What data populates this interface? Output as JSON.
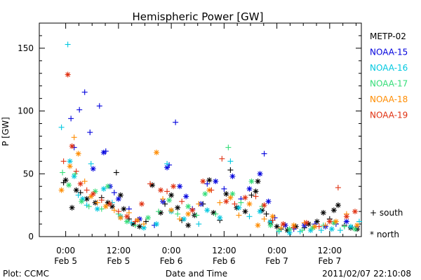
{
  "chart_data": {
    "type": "scatter",
    "title": "Hemispheric Power [GW]",
    "xlabel": "Date and Time",
    "ylabel": "P [GW]",
    "ylim": [
      0,
      170
    ],
    "xlim": [
      -0.25,
      2.8
    ],
    "x_unit": "days since Feb 5 00:00",
    "y_ticks": [
      0,
      50,
      100,
      150
    ],
    "x_ticks": [
      {
        "x": 0.0,
        "time": "0:00",
        "date": "Feb 5"
      },
      {
        "x": 0.5,
        "time": "12:00",
        "date": "Feb 5"
      },
      {
        "x": 1.0,
        "time": "0:00",
        "date": "Feb 6"
      },
      {
        "x": 1.5,
        "time": "12:00",
        "date": "Feb 6"
      },
      {
        "x": 2.0,
        "time": "0:00",
        "date": "Feb 7"
      },
      {
        "x": 2.5,
        "time": "12:00",
        "date": "Feb 7"
      }
    ],
    "grid": false,
    "legend_position": "right",
    "hemisphere_legend": [
      {
        "symbol": "+",
        "label": "south"
      },
      {
        "symbol": "*",
        "label": "north"
      }
    ],
    "series": [
      {
        "name": "METP-02",
        "color": "#000000",
        "points": [
          [
            -0.02,
            43,
            "+"
          ],
          [
            0.0,
            45,
            "*"
          ],
          [
            0.06,
            23,
            "*"
          ],
          [
            0.1,
            37,
            "*"
          ],
          [
            0.14,
            35,
            "+"
          ],
          [
            0.2,
            30,
            "*"
          ],
          [
            0.28,
            27,
            "*"
          ],
          [
            0.34,
            31,
            "+"
          ],
          [
            0.4,
            27,
            "*"
          ],
          [
            0.44,
            24,
            "*"
          ],
          [
            0.48,
            51,
            "+"
          ],
          [
            0.52,
            33,
            "*"
          ],
          [
            0.55,
            22,
            "*"
          ],
          [
            0.6,
            14,
            "+"
          ],
          [
            0.64,
            10,
            "*"
          ],
          [
            0.7,
            8,
            "*"
          ],
          [
            0.76,
            12,
            "+"
          ],
          [
            0.82,
            41,
            "*"
          ],
          [
            0.9,
            19,
            "*"
          ],
          [
            0.94,
            26,
            "+"
          ],
          [
            1.0,
            33,
            "*"
          ],
          [
            1.06,
            23,
            "*"
          ],
          [
            1.1,
            13,
            "+"
          ],
          [
            1.16,
            9,
            "*"
          ],
          [
            1.22,
            17,
            "*"
          ],
          [
            1.3,
            26,
            "+"
          ],
          [
            1.36,
            45,
            "*"
          ],
          [
            1.4,
            19,
            "*"
          ],
          [
            1.46,
            13,
            "+"
          ],
          [
            1.52,
            34,
            "*"
          ],
          [
            1.56,
            53,
            "+"
          ],
          [
            1.62,
            23,
            "*"
          ],
          [
            1.7,
            20,
            "*"
          ],
          [
            1.76,
            33,
            "+"
          ],
          [
            1.8,
            36,
            "*"
          ],
          [
            1.82,
            44,
            "*"
          ],
          [
            1.86,
            21,
            "*"
          ],
          [
            1.9,
            18,
            "+"
          ],
          [
            1.94,
            11,
            "*"
          ],
          [
            2.0,
            8,
            "*"
          ],
          [
            2.04,
            6,
            "+"
          ],
          [
            2.1,
            5,
            "*"
          ],
          [
            2.18,
            8,
            "*"
          ],
          [
            2.26,
            7,
            "+"
          ],
          [
            2.3,
            10,
            "*"
          ],
          [
            2.38,
            12,
            "*"
          ],
          [
            2.44,
            19,
            "*"
          ],
          [
            2.5,
            14,
            "+"
          ],
          [
            2.54,
            21,
            "*"
          ],
          [
            2.58,
            25,
            "*"
          ],
          [
            2.64,
            9,
            "+"
          ],
          [
            2.7,
            7,
            "*"
          ],
          [
            2.76,
            6,
            "*"
          ]
        ]
      },
      {
        "name": "NOAA-15",
        "color": "#0000dd",
        "points": [
          [
            0.05,
            94,
            "+"
          ],
          [
            0.08,
            71,
            "+"
          ],
          [
            0.13,
            101,
            "+"
          ],
          [
            0.18,
            115,
            "+"
          ],
          [
            0.23,
            83,
            "+"
          ],
          [
            0.26,
            54,
            "*"
          ],
          [
            0.32,
            104,
            "+"
          ],
          [
            0.36,
            67,
            "*"
          ],
          [
            0.38,
            68,
            "+"
          ],
          [
            0.42,
            40,
            "*"
          ],
          [
            0.46,
            35,
            "+"
          ],
          [
            0.5,
            30,
            "*"
          ],
          [
            0.6,
            22,
            "+"
          ],
          [
            0.7,
            14,
            "*"
          ],
          [
            0.84,
            9,
            "+"
          ],
          [
            0.92,
            28,
            "*"
          ],
          [
            0.96,
            55,
            "*"
          ],
          [
            0.98,
            57,
            "+"
          ],
          [
            1.04,
            91,
            "+"
          ],
          [
            1.08,
            40,
            "*"
          ],
          [
            1.14,
            32,
            "*"
          ],
          [
            1.2,
            22,
            "+"
          ],
          [
            1.28,
            26,
            "*"
          ],
          [
            1.34,
            42,
            "+"
          ],
          [
            1.42,
            44,
            "*"
          ],
          [
            1.5,
            38,
            "+"
          ],
          [
            1.58,
            48,
            "*"
          ],
          [
            1.66,
            30,
            "+"
          ],
          [
            1.74,
            38,
            "*"
          ],
          [
            1.84,
            50,
            "*"
          ],
          [
            1.88,
            66,
            "+"
          ],
          [
            1.92,
            28,
            "*"
          ],
          [
            1.98,
            15,
            "+"
          ],
          [
            2.08,
            9,
            "*"
          ],
          [
            2.16,
            6,
            "+"
          ],
          [
            2.26,
            9,
            "*"
          ],
          [
            2.36,
            10,
            "+"
          ],
          [
            2.46,
            8,
            "*"
          ],
          [
            2.56,
            10,
            "+"
          ],
          [
            2.66,
            12,
            "*"
          ],
          [
            2.76,
            8,
            "+"
          ]
        ]
      },
      {
        "name": "NOAA-16",
        "color": "#00c8e0",
        "points": [
          [
            -0.04,
            87,
            "+"
          ],
          [
            0.02,
            153,
            "+"
          ],
          [
            0.04,
            60,
            "*"
          ],
          [
            0.08,
            48,
            "*"
          ],
          [
            0.12,
            33,
            "+"
          ],
          [
            0.16,
            30,
            "*"
          ],
          [
            0.2,
            25,
            "+"
          ],
          [
            0.24,
            58,
            "+"
          ],
          [
            0.3,
            22,
            "*"
          ],
          [
            0.36,
            38,
            "*"
          ],
          [
            0.44,
            27,
            "+"
          ],
          [
            0.52,
            16,
            "*"
          ],
          [
            0.62,
            11,
            "+"
          ],
          [
            0.74,
            7,
            "*"
          ],
          [
            0.86,
            10,
            "*"
          ],
          [
            0.96,
            58,
            "+"
          ],
          [
            1.0,
            20,
            "*"
          ],
          [
            1.12,
            14,
            "*"
          ],
          [
            1.26,
            10,
            "+"
          ],
          [
            1.34,
            21,
            "*"
          ],
          [
            1.46,
            15,
            "*"
          ],
          [
            1.56,
            60,
            "+"
          ],
          [
            1.64,
            23,
            "*"
          ],
          [
            1.74,
            16,
            "+"
          ],
          [
            1.84,
            20,
            "*"
          ],
          [
            1.94,
            12,
            "*"
          ],
          [
            2.02,
            4,
            "+"
          ],
          [
            2.12,
            3,
            "*"
          ],
          [
            2.22,
            4,
            "+"
          ],
          [
            2.32,
            5,
            "*"
          ],
          [
            2.42,
            5,
            "+"
          ],
          [
            2.52,
            6,
            "*"
          ],
          [
            2.6,
            5,
            "+"
          ],
          [
            2.7,
            8,
            "*"
          ],
          [
            2.78,
            12,
            "+"
          ]
        ]
      },
      {
        "name": "NOAA-17",
        "color": "#33dd77",
        "points": [
          [
            -0.03,
            51,
            "+"
          ],
          [
            0.03,
            41,
            "*"
          ],
          [
            0.09,
            50,
            "+"
          ],
          [
            0.15,
            28,
            "*"
          ],
          [
            0.22,
            24,
            "+"
          ],
          [
            0.28,
            36,
            "*"
          ],
          [
            0.34,
            22,
            "+"
          ],
          [
            0.4,
            40,
            "*"
          ],
          [
            0.5,
            18,
            "+"
          ],
          [
            0.58,
            12,
            "*"
          ],
          [
            0.66,
            9,
            "+"
          ],
          [
            0.78,
            15,
            "*"
          ],
          [
            0.88,
            20,
            "+"
          ],
          [
            0.98,
            29,
            "*"
          ],
          [
            1.06,
            18,
            "+"
          ],
          [
            1.16,
            24,
            "*"
          ],
          [
            1.24,
            17,
            "+"
          ],
          [
            1.32,
            34,
            "*"
          ],
          [
            1.42,
            18,
            "+"
          ],
          [
            1.54,
            71,
            "+"
          ],
          [
            1.58,
            34,
            "*"
          ],
          [
            1.66,
            27,
            "+"
          ],
          [
            1.76,
            44,
            "*"
          ],
          [
            1.86,
            24,
            "+"
          ],
          [
            1.94,
            9,
            "*"
          ],
          [
            2.02,
            5,
            "+"
          ],
          [
            2.12,
            6,
            "*"
          ],
          [
            2.24,
            5,
            "+"
          ],
          [
            2.34,
            7,
            "*"
          ],
          [
            2.44,
            9,
            "+"
          ],
          [
            2.54,
            11,
            "*"
          ],
          [
            2.64,
            8,
            "+"
          ],
          [
            2.74,
            6,
            "*"
          ]
        ]
      },
      {
        "name": "NOAA-18",
        "color": "#ff8c00",
        "points": [
          [
            -0.04,
            37,
            "*"
          ],
          [
            0.04,
            56,
            "*"
          ],
          [
            0.08,
            79,
            "+"
          ],
          [
            0.12,
            66,
            "*"
          ],
          [
            0.18,
            44,
            "+"
          ],
          [
            0.24,
            32,
            "*"
          ],
          [
            0.3,
            27,
            "+"
          ],
          [
            0.38,
            24,
            "*"
          ],
          [
            0.46,
            21,
            "+"
          ],
          [
            0.52,
            15,
            "*"
          ],
          [
            0.6,
            19,
            "+"
          ],
          [
            0.68,
            13,
            "*"
          ],
          [
            0.74,
            10,
            "+"
          ],
          [
            0.86,
            67,
            "*"
          ],
          [
            0.92,
            30,
            "+"
          ],
          [
            1.0,
            21,
            "*"
          ],
          [
            1.08,
            14,
            "+"
          ],
          [
            1.16,
            18,
            "*"
          ],
          [
            1.26,
            26,
            "+"
          ],
          [
            1.36,
            37,
            "*"
          ],
          [
            1.46,
            27,
            "+"
          ],
          [
            1.56,
            31,
            "*"
          ],
          [
            1.64,
            17,
            "+"
          ],
          [
            1.74,
            26,
            "*"
          ],
          [
            1.82,
            9,
            "*"
          ],
          [
            1.88,
            14,
            "+"
          ],
          [
            1.96,
            16,
            "*"
          ],
          [
            2.04,
            7,
            "+"
          ],
          [
            2.16,
            9,
            "*"
          ],
          [
            2.26,
            11,
            "+"
          ],
          [
            2.36,
            8,
            "*"
          ],
          [
            2.46,
            9,
            "+"
          ],
          [
            2.56,
            12,
            "*"
          ],
          [
            2.66,
            18,
            "+"
          ],
          [
            2.76,
            9,
            "*"
          ]
        ]
      },
      {
        "name": "NOAA-19",
        "color": "#e03010",
        "points": [
          [
            -0.02,
            60,
            "+"
          ],
          [
            0.02,
            129,
            "*"
          ],
          [
            0.06,
            72,
            "*"
          ],
          [
            0.1,
            52,
            "+"
          ],
          [
            0.14,
            42,
            "*"
          ],
          [
            0.2,
            37,
            "+"
          ],
          [
            0.26,
            34,
            "*"
          ],
          [
            0.34,
            29,
            "+"
          ],
          [
            0.42,
            26,
            "*"
          ],
          [
            0.5,
            20,
            "+"
          ],
          [
            0.58,
            16,
            "*"
          ],
          [
            0.66,
            12,
            "+"
          ],
          [
            0.72,
            26,
            "*"
          ],
          [
            0.8,
            42,
            "+"
          ],
          [
            0.9,
            37,
            "*"
          ],
          [
            0.96,
            36,
            "+"
          ],
          [
            1.02,
            40,
            "*"
          ],
          [
            1.1,
            28,
            "+"
          ],
          [
            1.2,
            21,
            "*"
          ],
          [
            1.3,
            44,
            "*"
          ],
          [
            1.38,
            37,
            "+"
          ],
          [
            1.48,
            62,
            "+"
          ],
          [
            1.52,
            28,
            "*"
          ],
          [
            1.6,
            26,
            "+"
          ],
          [
            1.7,
            31,
            "*"
          ],
          [
            1.8,
            32,
            "+"
          ],
          [
            1.88,
            25,
            "*"
          ],
          [
            1.96,
            13,
            "+"
          ],
          [
            2.06,
            10,
            "*"
          ],
          [
            2.16,
            7,
            "+"
          ],
          [
            2.28,
            11,
            "*"
          ],
          [
            2.4,
            8,
            "+"
          ],
          [
            2.5,
            12,
            "*"
          ],
          [
            2.58,
            39,
            "+"
          ],
          [
            2.66,
            16,
            "*"
          ],
          [
            2.74,
            20,
            "*"
          ]
        ]
      }
    ]
  },
  "footer": {
    "left": "Plot: CCMC",
    "right": "2011/02/07 22:10:08"
  }
}
